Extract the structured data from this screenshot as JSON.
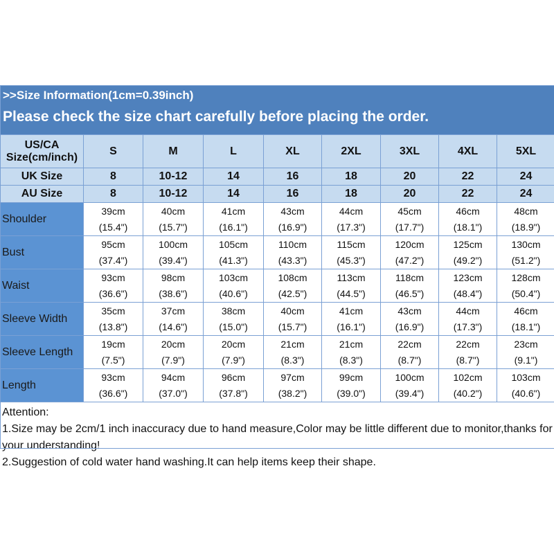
{
  "banner": {
    "line1": ">>Size Information(1cm=0.39inch)",
    "line2": "Please check the size chart carefully before placing the order."
  },
  "colors": {
    "banner": "#4f81bd",
    "header_row": "#c6dbf0",
    "label_col": "#5b93d3"
  },
  "header": {
    "us_label": "US/CA Size(cm/inch)",
    "sizes": [
      "S",
      "M",
      "L",
      "XL",
      "2XL",
      "3XL",
      "4XL",
      "5XL"
    ]
  },
  "uk": {
    "label": "UK Size",
    "values": [
      "8",
      "10-12",
      "14",
      "16",
      "18",
      "20",
      "22",
      "24"
    ]
  },
  "au": {
    "label": "AU Size",
    "values": [
      "8",
      "10-12",
      "14",
      "16",
      "18",
      "20",
      "22",
      "24"
    ]
  },
  "rows": [
    {
      "label": "Shoulder",
      "cm": [
        "39cm",
        "40cm",
        "41cm",
        "43cm",
        "44cm",
        "45cm",
        "46cm",
        "48cm"
      ],
      "in": [
        "(15.4\")",
        "(15.7\")",
        "(16.1\")",
        "(16.9\")",
        "(17.3\")",
        "(17.7\")",
        "(18.1\")",
        "(18.9\")"
      ]
    },
    {
      "label": "Bust",
      "cm": [
        "95cm",
        "100cm",
        "105cm",
        "110cm",
        "115cm",
        "120cm",
        "125cm",
        "130cm"
      ],
      "in": [
        "(37.4\")",
        "(39.4\")",
        "(41.3\")",
        "(43.3\")",
        "(45.3\")",
        "(47.2\")",
        "(49.2\")",
        "(51.2\")"
      ]
    },
    {
      "label": "Waist",
      "cm": [
        "93cm",
        "98cm",
        "103cm",
        "108cm",
        "113cm",
        "118cm",
        "123cm",
        "128cm"
      ],
      "in": [
        "(36.6\")",
        "(38.6\")",
        "(40.6\")",
        "(42.5\")",
        "(44.5\")",
        "(46.5\")",
        "(48.4\")",
        "(50.4\")"
      ]
    },
    {
      "label": "Sleeve Width",
      "cm": [
        "35cm",
        "37cm",
        "38cm",
        "40cm",
        "41cm",
        "43cm",
        "44cm",
        "46cm"
      ],
      "in": [
        "(13.8\")",
        "(14.6\")",
        "(15.0\")",
        "(15.7\")",
        "(16.1\")",
        "(16.9\")",
        "(17.3\")",
        "(18.1\")"
      ]
    },
    {
      "label": "Sleeve Length",
      "cm": [
        "19cm",
        "20cm",
        "20cm",
        "21cm",
        "21cm",
        "22cm",
        "22cm",
        "23cm"
      ],
      "in": [
        "(7.5\")",
        "(7.9\")",
        "(7.9\")",
        "(8.3\")",
        "(8.3\")",
        "(8.7\")",
        "(8.7\")",
        "(9.1\")"
      ]
    },
    {
      "label": "Length",
      "cm": [
        "93cm",
        "94cm",
        "96cm",
        "97cm",
        "99cm",
        "100cm",
        "102cm",
        "103cm"
      ],
      "in": [
        "(36.6\")",
        "(37.0\")",
        "(37.8\")",
        "(38.2\")",
        "(39.0\")",
        "(39.4\")",
        "(40.2\")",
        "(40.6\")"
      ]
    }
  ],
  "attention": {
    "title": "Attention:",
    "note1": "1.Size may be 2cm/1 inch inaccuracy due to hand measure,Color may be little different due to monitor,thanks for your understanding!",
    "note2": "2.Suggestion of cold water hand washing.It can help items keep their shape."
  }
}
